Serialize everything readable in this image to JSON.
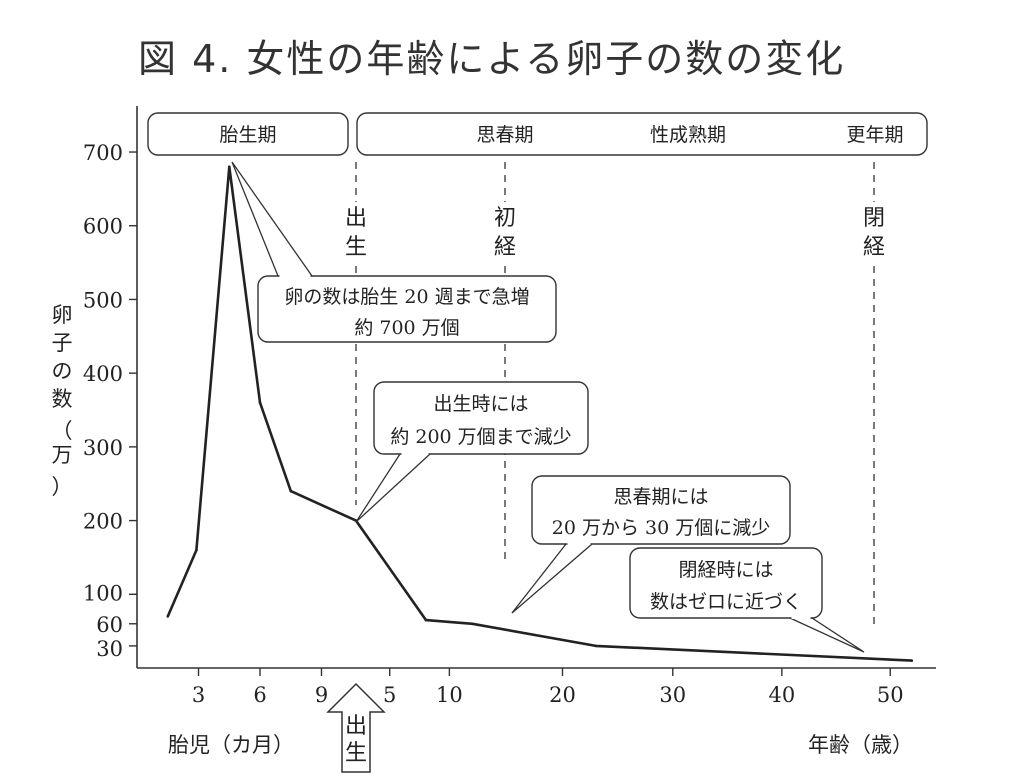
{
  "title": "図 4.  女性の年齢による卵子の数の変化",
  "chart_data": {
    "type": "line",
    "ylabel": "卵子の数（万）",
    "ylim": [
      0,
      750
    ],
    "yticks": [
      30,
      60,
      100,
      200,
      300,
      400,
      500,
      600,
      700
    ],
    "x_fetal_label": "胎児（カ月）",
    "x_age_label": "年齢（歳）",
    "x_fetal_ticks": [
      "3",
      "6",
      "9"
    ],
    "x_age_ticks": [
      "5",
      "10",
      "20",
      "30",
      "40",
      "50"
    ],
    "birth_arrow_label": "出生",
    "phases": [
      "胎生期",
      "思春期",
      "性成熟期",
      "更年期"
    ],
    "markers": [
      {
        "label": "出生"
      },
      {
        "label": "初経"
      },
      {
        "label": "閉経"
      }
    ],
    "series": [
      {
        "points": [
          {
            "period": "fetal",
            "month": 1.5,
            "value": 70
          },
          {
            "period": "fetal",
            "month": 2.9,
            "value": 160
          },
          {
            "period": "fetal",
            "month": 4.5,
            "value": 680
          },
          {
            "period": "fetal",
            "month": 6.0,
            "value": 360
          },
          {
            "period": "fetal",
            "month": 7.5,
            "value": 240
          },
          {
            "period": "birth",
            "month": 10.6,
            "value": 200
          },
          {
            "period": "age",
            "age": 8,
            "value": 65
          },
          {
            "period": "age",
            "age": 12,
            "value": 60
          },
          {
            "period": "age",
            "age": 23,
            "value": 30
          },
          {
            "period": "age",
            "age": 52,
            "value": 10
          }
        ]
      }
    ],
    "annotations": [
      {
        "lines": [
          "卵の数は胎生 20 週まで急増",
          "約 700 万個"
        ]
      },
      {
        "lines": [
          "出生時には",
          "約 200 万個まで減少"
        ]
      },
      {
        "lines": [
          "思春期には",
          "20 万から 30 万個に減少"
        ]
      },
      {
        "lines": [
          "閉経時には",
          "数はゼロに近づく"
        ]
      }
    ]
  }
}
